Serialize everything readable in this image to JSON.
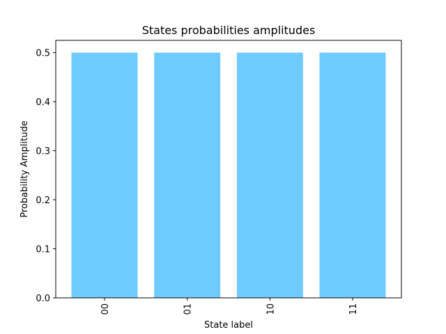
{
  "chart_data": {
    "type": "bar",
    "title": "States probabilities amplitudes",
    "xlabel": "State label",
    "ylabel": "Probability Amplitude",
    "categories": [
      "00",
      "01",
      "10",
      "11"
    ],
    "values": [
      0.5,
      0.5,
      0.5,
      0.5
    ],
    "ylim": [
      0,
      0.525
    ],
    "yticks": [
      "0.0",
      "0.1",
      "0.2",
      "0.3",
      "0.4",
      "0.5"
    ],
    "bar_color": "#6fcbff",
    "grid": false,
    "legend": false,
    "x_tick_rotation": "vertical"
  }
}
